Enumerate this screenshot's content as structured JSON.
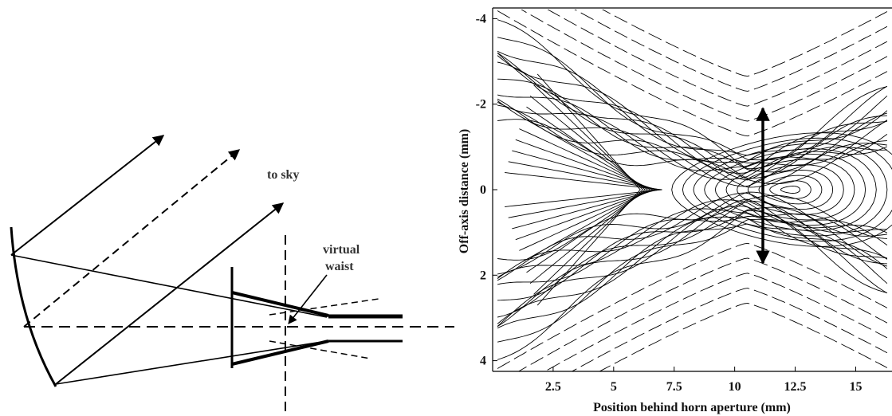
{
  "diagram": {
    "label_to_sky": "to sky",
    "label_virtual_line1": "virtual",
    "label_virtual_line2": "waist"
  },
  "contour_plot": {
    "xlabel": "Position behind horn aperture (mm)",
    "ylabel": "Off-axis distance (mm)",
    "xticks": [
      "2.5",
      "5",
      "7.5",
      "10",
      "12.5",
      "15"
    ],
    "yticks": [
      "-4",
      "-2",
      "0",
      "2",
      "4"
    ],
    "tick_values_x": [
      2.5,
      5,
      7.5,
      10,
      12.5,
      15
    ],
    "tick_values_y": [
      -4,
      -2,
      0,
      2,
      4
    ],
    "x_range": [
      0,
      16.5
    ],
    "y_range": [
      -4.25,
      4.25
    ],
    "annotation": "double-headed arrow at x=10.8 spanning y=-1.7 to y=1.7"
  }
}
